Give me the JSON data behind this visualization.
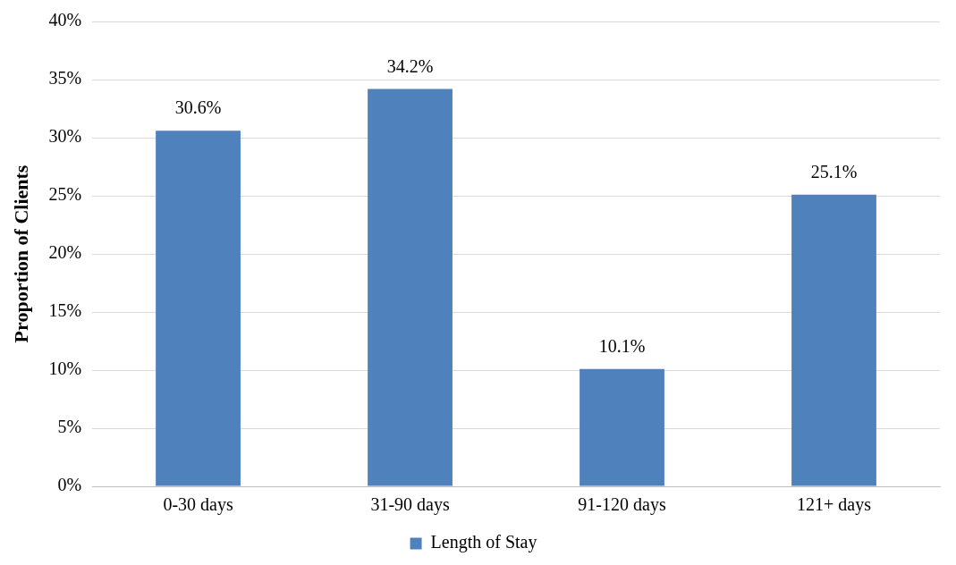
{
  "chart_data": {
    "type": "bar",
    "categories": [
      "0-30 days",
      "31-90 days",
      "91-120 days",
      "121+ days"
    ],
    "series": [
      {
        "name": "Length of Stay",
        "color": "#4f81bd",
        "values": [
          30.6,
          34.2,
          10.1,
          25.1
        ],
        "value_labels": [
          "30.6%",
          "34.2%",
          "10.1%",
          "25.1%"
        ]
      }
    ],
    "ylabel": "Proportion of Clients",
    "ylim": [
      0,
      40
    ],
    "yticks": [
      {
        "value": 0,
        "label": "0%"
      },
      {
        "value": 5,
        "label": "5%"
      },
      {
        "value": 10,
        "label": "10%"
      },
      {
        "value": 15,
        "label": "15%"
      },
      {
        "value": 20,
        "label": "20%"
      },
      {
        "value": 25,
        "label": "25%"
      },
      {
        "value": 30,
        "label": "30%"
      },
      {
        "value": 35,
        "label": "35%"
      },
      {
        "value": 40,
        "label": "40%"
      }
    ],
    "grid": "y",
    "legend": "bottom"
  }
}
